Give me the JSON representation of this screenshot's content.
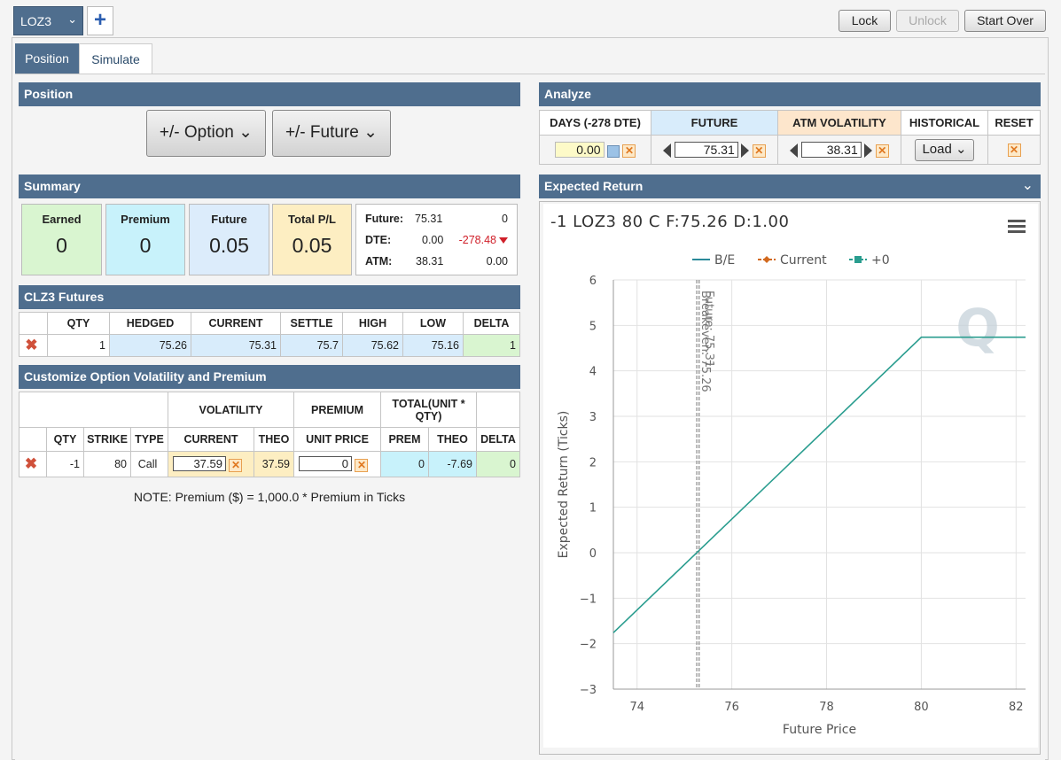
{
  "toolbar": {
    "symbol": "LOZ3",
    "add": "+",
    "lock": "Lock",
    "unlock": "Unlock",
    "start_over": "Start Over"
  },
  "tabs": {
    "position": "Position",
    "simulate": "Simulate"
  },
  "position": {
    "title": "Position",
    "option_btn": "+/- Option",
    "future_btn": "+/- Future"
  },
  "summary": {
    "title": "Summary",
    "cards": [
      {
        "label": "Earned",
        "value": "0"
      },
      {
        "label": "Premium",
        "value": "0"
      },
      {
        "label": "Future",
        "value": "0.05"
      },
      {
        "label": "Total P/L",
        "value": "0.05"
      }
    ],
    "future_label": "Future:",
    "future_val": "75.31",
    "future_chg": "0",
    "dte_label": "DTE:",
    "dte_val": "0.00",
    "dte_chg": "-278.48",
    "atm_label": "ATM:",
    "atm_val": "38.31",
    "atm_chg": "0.00"
  },
  "futures": {
    "title": "CLZ3 Futures",
    "headers": [
      "QTY",
      "HEDGED",
      "CURRENT",
      "SETTLE",
      "HIGH",
      "LOW",
      "DELTA"
    ],
    "row": [
      "1",
      "75.26",
      "75.31",
      "75.7",
      "75.62",
      "75.16",
      "1"
    ]
  },
  "customize": {
    "title": "Customize Option Volatility and Premium",
    "group_vol": "VOLATILITY",
    "group_prem": "PREMIUM",
    "group_total": "TOTAL(UNIT * QTY)",
    "headers": [
      "QTY",
      "STRIKE",
      "TYPE",
      "CURRENT",
      "THEO",
      "UNIT PRICE",
      "PREM",
      "THEO",
      "DELTA"
    ],
    "row": {
      "qty": "-1",
      "strike": "80",
      "type": "Call",
      "vol_current": "37.59",
      "vol_theo": "37.59",
      "unit_price": "0",
      "prem": "0",
      "theo": "-7.69",
      "delta": "0"
    },
    "note": "NOTE: Premium ($) = 1,000.0 * Premium in Ticks"
  },
  "analyze": {
    "title": "Analyze",
    "headers": [
      "DAYS (-278 DTE)",
      "FUTURE",
      "ATM VOLATILITY",
      "HISTORICAL",
      "RESET"
    ],
    "days": "0.00",
    "future": "75.31",
    "atm_vol": "38.31",
    "load": "Load"
  },
  "expected": {
    "title": "Expected Return"
  },
  "chart_data": {
    "type": "line",
    "title": "-1 LOZ3 80 C F:75.26 D:1.00",
    "xlabel": "Future Price",
    "ylabel": "Expected Return (Ticks)",
    "xlim": [
      73.5,
      82.2
    ],
    "ylim": [
      -3,
      6
    ],
    "xticks": [
      "74",
      "76",
      "78",
      "80",
      "82"
    ],
    "yticks": [
      "−3",
      "−2",
      "−1",
      "0",
      "1",
      "2",
      "3",
      "4",
      "5",
      "6"
    ],
    "legend": [
      "B/E",
      "Current",
      "+0"
    ],
    "annotations": [
      "Breakeven: 75.26",
      "Future: 75.31"
    ],
    "series": [
      {
        "name": "+0",
        "color": "#2a9d8f",
        "x": [
          73.5,
          80,
          82.2
        ],
        "y": [
          -1.76,
          4.74,
          4.74
        ]
      }
    ],
    "vlines": [
      75.26,
      75.31
    ],
    "colors": {
      "be": "#2a8a9a",
      "current": "#d2691e",
      "plus0": "#2a9d8f"
    }
  }
}
